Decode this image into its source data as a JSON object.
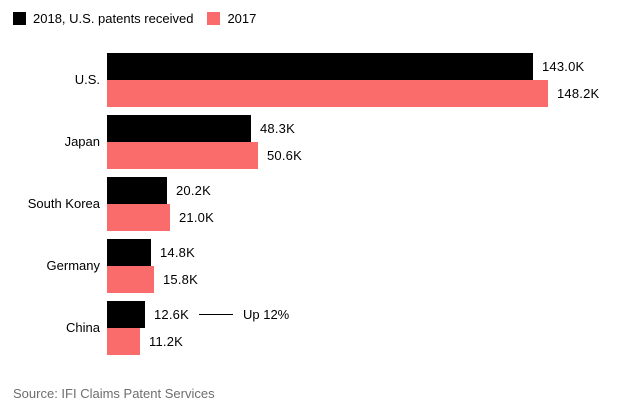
{
  "legend": {
    "items": [
      {
        "label": "2018, U.S. patents received",
        "color": "#000000"
      },
      {
        "label": "2017",
        "color": "#FA6C6C"
      }
    ]
  },
  "source_note": "Source: IFI Claims Patent Services",
  "colors": {
    "bar_2018": "#000000",
    "bar_2017": "#FA6C6C",
    "text": "#000000",
    "source_text": "#6E6E6E",
    "background": "#FFFFFF"
  },
  "chart_data": {
    "type": "bar",
    "orientation": "horizontal",
    "title": "",
    "xlabel": "",
    "ylabel": "",
    "unit": "thousands of U.S. patents (K)",
    "grid": false,
    "legend_position": "top-left",
    "xlim": [
      0,
      150
    ],
    "categories": [
      "U.S.",
      "Japan",
      "South Korea",
      "Germany",
      "China"
    ],
    "series": [
      {
        "name": "2018, U.S. patents received",
        "color": "#000000",
        "values": [
          143.0,
          48.3,
          20.2,
          14.8,
          12.6
        ],
        "labels": [
          "143.0K",
          "48.3K",
          "20.2K",
          "14.8K",
          "12.6K"
        ]
      },
      {
        "name": "2017",
        "color": "#FA6C6C",
        "values": [
          148.2,
          50.6,
          21.0,
          15.8,
          11.2
        ],
        "labels": [
          "148.2K",
          "50.6K",
          "21.0K",
          "15.8K",
          "11.2K"
        ]
      }
    ],
    "annotation": {
      "text": "Up 12%",
      "target_category": "China",
      "target_series": "2018, U.S. patents received"
    },
    "source": "Source: IFI Claims Patent Services"
  }
}
